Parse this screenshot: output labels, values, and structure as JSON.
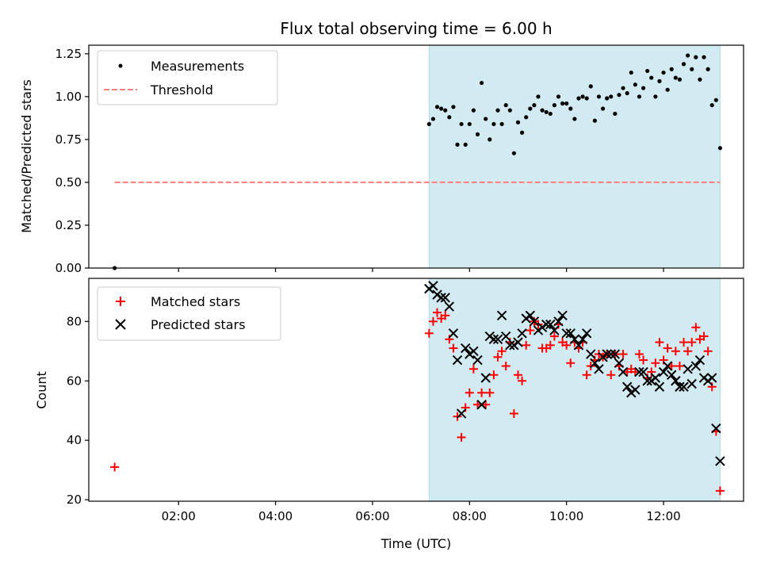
{
  "chart_data": [
    {
      "type": "scatter",
      "title": "Flux total observing time = 6.00 h",
      "xlabel": "",
      "ylabel": "Matched/Predicted stars",
      "xlim": [
        "00:09",
        "13:39"
      ],
      "ylim": [
        0,
        1.3
      ],
      "yticks": [
        "0.00",
        "0.25",
        "0.50",
        "0.75",
        "1.00",
        "1.25"
      ],
      "yticks_values": [
        0,
        0.25,
        0.5,
        0.75,
        1.0,
        1.25
      ],
      "xticks_values": [
        "02:00",
        "04:00",
        "06:00",
        "08:00",
        "10:00",
        "12:00"
      ],
      "shaded_interval": [
        "07:10",
        "13:10"
      ],
      "shade_color": "#add8e6",
      "legend_placement": "top-left",
      "legend": [
        {
          "label": "Measurements",
          "marker": "dot",
          "color": "#000000"
        },
        {
          "label": "Threshold",
          "marker": "dashed-line",
          "color": "#ff6f6f"
        }
      ],
      "threshold": {
        "y": 0.5,
        "x": [
          "00:41",
          "13:10"
        ],
        "color": "#ff7f7f"
      },
      "series": [
        {
          "name": "Measurements",
          "color": "#000000",
          "x": [
            "00:41",
            "07:10",
            "07:15",
            "07:20",
            "07:25",
            "07:30",
            "07:35",
            "07:40",
            "07:45",
            "07:50",
            "07:55",
            "08:00",
            "08:05",
            "08:10",
            "08:15",
            "08:20",
            "08:25",
            "08:30",
            "08:35",
            "08:40",
            "08:45",
            "08:50",
            "08:55",
            "09:00",
            "09:05",
            "09:10",
            "09:15",
            "09:20",
            "09:25",
            "09:30",
            "09:35",
            "09:40",
            "09:45",
            "09:50",
            "09:55",
            "10:00",
            "10:05",
            "10:10",
            "10:15",
            "10:20",
            "10:25",
            "10:30",
            "10:35",
            "10:40",
            "10:45",
            "10:50",
            "10:55",
            "11:00",
            "11:05",
            "11:10",
            "11:15",
            "11:20",
            "11:25",
            "11:30",
            "11:35",
            "11:40",
            "11:45",
            "11:50",
            "11:55",
            "12:00",
            "12:05",
            "12:10",
            "12:15",
            "12:20",
            "12:25",
            "12:30",
            "12:35",
            "12:40",
            "12:45",
            "12:50",
            "12:55",
            "13:00",
            "13:05",
            "13:10"
          ],
          "values": [
            0.0,
            0.84,
            0.87,
            0.94,
            0.93,
            0.92,
            0.88,
            0.94,
            0.72,
            0.84,
            0.72,
            0.84,
            0.92,
            0.78,
            1.08,
            0.87,
            0.75,
            0.84,
            0.92,
            0.84,
            0.95,
            0.92,
            0.67,
            0.85,
            0.79,
            0.88,
            0.93,
            0.95,
            1.0,
            0.92,
            0.91,
            0.9,
            0.95,
            1.0,
            0.96,
            0.96,
            0.93,
            0.87,
            0.99,
            1.0,
            0.99,
            1.06,
            0.86,
            1.0,
            0.93,
            0.99,
            1.0,
            0.9,
            1.01,
            1.05,
            1.02,
            1.14,
            1.07,
            1.0,
            1.05,
            1.15,
            1.11,
            1.0,
            1.09,
            1.14,
            1.04,
            1.16,
            1.11,
            1.1,
            1.19,
            1.24,
            1.16,
            1.23,
            1.1,
            1.23,
            1.16,
            0.95,
            0.98,
            0.7
          ]
        }
      ]
    },
    {
      "type": "scatter",
      "title": "",
      "xlabel": "Time (UTC)",
      "ylabel": "Count",
      "xlim": [
        "00:09",
        "13:39"
      ],
      "ylim": [
        19.5,
        94.5
      ],
      "yticks": [
        "20",
        "40",
        "60",
        "80"
      ],
      "yticks_values": [
        20,
        40,
        60,
        80
      ],
      "xticks": [
        "02:00",
        "04:00",
        "06:00",
        "08:00",
        "10:00",
        "12:00"
      ],
      "xticks_values": [
        "02:00",
        "04:00",
        "06:00",
        "08:00",
        "10:00",
        "12:00"
      ],
      "shaded_interval": [
        "07:10",
        "13:10"
      ],
      "shade_color": "#add8e6",
      "legend_placement": "top-left",
      "legend": [
        {
          "label": "Matched stars",
          "marker": "plus",
          "color": "#ff0000"
        },
        {
          "label": "Predicted stars",
          "marker": "x",
          "color": "#000000"
        }
      ],
      "series": [
        {
          "name": "Matched stars",
          "marker": "plus",
          "color": "#ff0000",
          "x": [
            "00:41",
            "07:10",
            "07:15",
            "07:20",
            "07:25",
            "07:30",
            "07:35",
            "07:40",
            "07:45",
            "07:50",
            "07:55",
            "08:00",
            "08:05",
            "08:10",
            "08:15",
            "08:20",
            "08:25",
            "08:30",
            "08:35",
            "08:40",
            "08:45",
            "08:50",
            "08:55",
            "09:00",
            "09:05",
            "09:10",
            "09:15",
            "09:20",
            "09:25",
            "09:30",
            "09:35",
            "09:40",
            "09:45",
            "09:50",
            "09:55",
            "10:00",
            "10:05",
            "10:10",
            "10:15",
            "10:20",
            "10:25",
            "10:30",
            "10:35",
            "10:40",
            "10:45",
            "10:50",
            "10:55",
            "11:00",
            "11:05",
            "11:10",
            "11:15",
            "11:20",
            "11:25",
            "11:30",
            "11:35",
            "11:40",
            "11:45",
            "11:50",
            "11:55",
            "12:00",
            "12:05",
            "12:10",
            "12:15",
            "12:20",
            "12:25",
            "12:30",
            "12:35",
            "12:40",
            "12:45",
            "12:50",
            "12:55",
            "13:00",
            "13:05",
            "13:10"
          ],
          "values": [
            31,
            76,
            80,
            83,
            81,
            82,
            74,
            71,
            48,
            41,
            51,
            56,
            64,
            52,
            56,
            52,
            56,
            62,
            68,
            70,
            65,
            73,
            49,
            62,
            60,
            72,
            77,
            80,
            79,
            71,
            71,
            72,
            75,
            79,
            73,
            72,
            66,
            73,
            71,
            73,
            62,
            65,
            67,
            69,
            68,
            69,
            62,
            69,
            65,
            69,
            63,
            64,
            63,
            69,
            67,
            61,
            63,
            66,
            73,
            67,
            71,
            65,
            70,
            65,
            73,
            70,
            73,
            78,
            74,
            75,
            70,
            58,
            43,
            23
          ]
        },
        {
          "name": "Predicted stars",
          "marker": "x",
          "color": "#000000",
          "x": [
            "07:10",
            "07:15",
            "07:20",
            "07:25",
            "07:30",
            "07:35",
            "07:40",
            "07:45",
            "07:50",
            "07:55",
            "08:00",
            "08:05",
            "08:10",
            "08:15",
            "08:20",
            "08:25",
            "08:30",
            "08:35",
            "08:40",
            "08:45",
            "08:50",
            "08:55",
            "09:00",
            "09:05",
            "09:10",
            "09:15",
            "09:20",
            "09:25",
            "09:30",
            "09:35",
            "09:40",
            "09:45",
            "09:50",
            "09:55",
            "10:00",
            "10:05",
            "10:10",
            "10:15",
            "10:20",
            "10:25",
            "10:30",
            "10:35",
            "10:40",
            "10:45",
            "10:50",
            "10:55",
            "11:00",
            "11:05",
            "11:10",
            "11:15",
            "11:20",
            "11:25",
            "11:30",
            "11:35",
            "11:40",
            "11:45",
            "11:50",
            "11:55",
            "12:00",
            "12:05",
            "12:10",
            "12:15",
            "12:20",
            "12:25",
            "12:30",
            "12:35",
            "12:40",
            "12:45",
            "12:50",
            "12:55",
            "13:00",
            "13:05",
            "13:10"
          ],
          "values": [
            91,
            92,
            89,
            88,
            88,
            85,
            76,
            67,
            49,
            71,
            69,
            70,
            67,
            52,
            61,
            75,
            74,
            74,
            82,
            75,
            72,
            72,
            73,
            76,
            81,
            82,
            80,
            77,
            78,
            79,
            79,
            77,
            80,
            82,
            76,
            76,
            74,
            72,
            74,
            76,
            69,
            66,
            64,
            68,
            69,
            69,
            69,
            66,
            63,
            58,
            56,
            57,
            63,
            63,
            60,
            60,
            61,
            58,
            63,
            65,
            62,
            60,
            58,
            58,
            64,
            59,
            65,
            67,
            61,
            60,
            61,
            44,
            33
          ]
        }
      ]
    }
  ]
}
